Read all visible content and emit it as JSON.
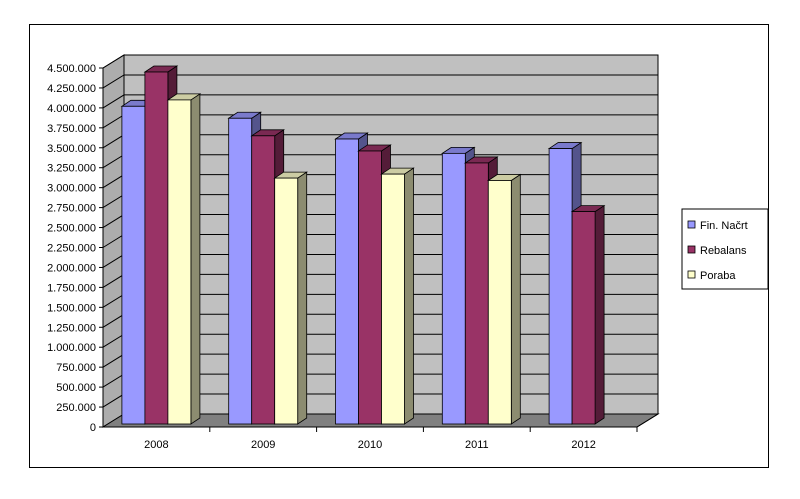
{
  "chart_data": {
    "type": "bar",
    "title": "",
    "xlabel": "",
    "ylabel": "",
    "categories": [
      "2008",
      "2009",
      "2010",
      "2011",
      "2012"
    ],
    "series": [
      {
        "name": "Fin. Načrt",
        "color": "#9999ff",
        "values": [
          4020000,
          3870000,
          3610000,
          3430000,
          3490000
        ]
      },
      {
        "name": "Rebalans",
        "color": "#993366",
        "values": [
          4450000,
          3650000,
          3460000,
          3310000,
          2700000
        ]
      },
      {
        "name": "Poraba",
        "color": "#ffffcc",
        "values": [
          4100000,
          3120000,
          3170000,
          3090000,
          null
        ]
      }
    ],
    "ylim": [
      0,
      4500000
    ],
    "yticks": [
      "0",
      "250.000",
      "500.000",
      "750.000",
      "1.000.000",
      "1.250.000",
      "1.500.000",
      "1.750.000",
      "2.000.000",
      "2.250.000",
      "2.500.000",
      "2.750.000",
      "3.000.000",
      "3.250.000",
      "3.500.000",
      "3.750.000",
      "4.000.000",
      "4.250.000",
      "4.500.000"
    ],
    "grid": true,
    "legend": "right",
    "style": "3d-clustered-column",
    "wall_color": "#c0c0c0",
    "floor_color": "#808080"
  }
}
